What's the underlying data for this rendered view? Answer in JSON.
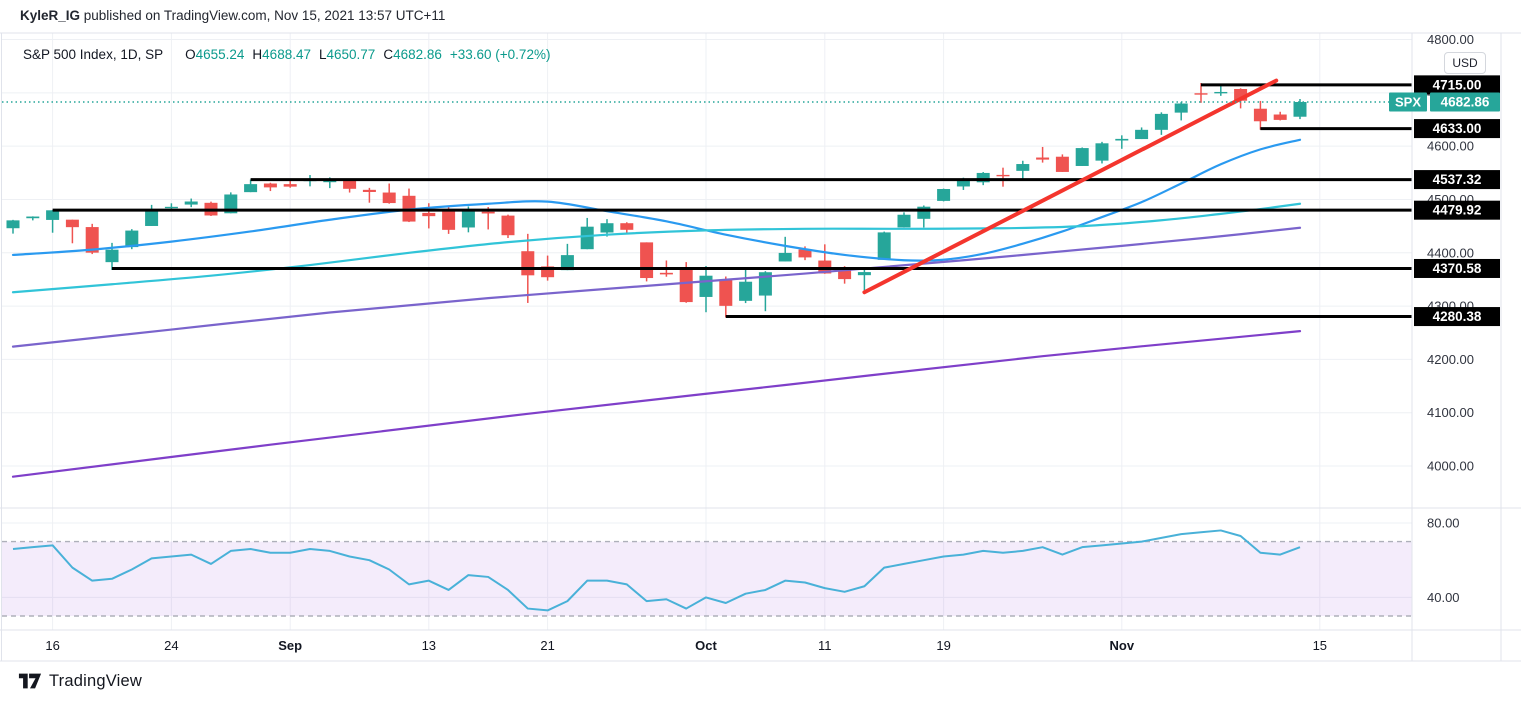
{
  "header": {
    "author": "KyleR_IG",
    "text": " published on TradingView.com, Nov 15, 2021 13:57 UTC+11"
  },
  "legend": {
    "symbol": "S&P 500 Index, 1D, SP",
    "ohlc": [
      {
        "k": "O",
        "v": "4655.24"
      },
      {
        "k": "H",
        "v": "4688.47"
      },
      {
        "k": "L",
        "v": "4650.77"
      },
      {
        "k": "C",
        "v": "4682.86"
      }
    ],
    "change": "+33.60 (+0.72%)"
  },
  "axis": {
    "currency": "USD",
    "price_ticks": [
      {
        "label": "4800.00",
        "price": 4800
      },
      {
        "label": "4700.00",
        "price": 4700
      },
      {
        "label": "4600.00",
        "price": 4600
      },
      {
        "label": "4500.00",
        "price": 4500
      },
      {
        "label": "4400.00",
        "price": 4400
      },
      {
        "label": "4300.00",
        "price": 4300
      },
      {
        "label": "4200.00",
        "price": 4200
      },
      {
        "label": "4100.00",
        "price": 4100
      },
      {
        "label": "4000.00",
        "price": 4000
      }
    ],
    "time_ticks": [
      {
        "label": "16",
        "index": 2,
        "bold": false
      },
      {
        "label": "24",
        "index": 8,
        "bold": false
      },
      {
        "label": "Sep",
        "index": 14,
        "bold": true
      },
      {
        "label": "13",
        "index": 21,
        "bold": false
      },
      {
        "label": "21",
        "index": 27,
        "bold": false
      },
      {
        "label": "Oct",
        "index": 35,
        "bold": true
      },
      {
        "label": "11",
        "index": 41,
        "bold": false
      },
      {
        "label": "19",
        "index": 47,
        "bold": false
      },
      {
        "label": "Nov",
        "index": 56,
        "bold": true
      },
      {
        "label": "15",
        "index": 66,
        "bold": false
      }
    ]
  },
  "footer": {
    "brand": "TradingView"
  },
  "colors": {
    "up": "#26a69a",
    "down": "#ef5350",
    "line_blue": "#2a9af0",
    "line_cyan": "#31c4d8",
    "line_purple_light": "#7a64cc",
    "line_purple_dark": "#7f3fc9",
    "trendline_red": "#f4352d",
    "level_black": "#000000",
    "rsi_line": "#49b1d8",
    "rsi_band_fill": "rgba(178,118,230,0.14)",
    "rsi_band_border": "#aeb0ba",
    "current_price": "#26a69a",
    "axis_text": "#30343f",
    "time_text": "#131722",
    "grid": "#eef0f4",
    "border": "#e0e3eb",
    "label_text": "#ffffff"
  },
  "chart_data": {
    "type": "candlestick",
    "title": "S&P 500 Index, 1D, SP",
    "date_range": "Aug 12 - Nov 12, 2021",
    "price_axis_range_visible": [
      3945,
      4812
    ],
    "grid": true,
    "unit": "USD",
    "candles": [
      {
        "d": "Aug 12",
        "o": 4446.08,
        "h": 4461.77,
        "l": 4435.96,
        "c": 4460.83
      },
      {
        "d": "Aug 13",
        "o": 4464.84,
        "h": 4468.37,
        "l": 4460.82,
        "c": 4468.0
      },
      {
        "d": "Aug 16",
        "o": 4461.65,
        "h": 4480.26,
        "l": 4437.66,
        "c": 4479.71
      },
      {
        "d": "Aug 17",
        "o": 4462.12,
        "h": 4462.12,
        "l": 4417.83,
        "c": 4448.08
      },
      {
        "d": "Aug 18",
        "o": 4448.24,
        "h": 4454.32,
        "l": 4397.59,
        "c": 4400.27
      },
      {
        "d": "Aug 19",
        "o": 4382.44,
        "h": 4418.61,
        "l": 4367.73,
        "c": 4405.8
      },
      {
        "d": "Aug 20",
        "o": 4410.66,
        "h": 4444.35,
        "l": 4406.8,
        "c": 4441.67
      },
      {
        "d": "Aug 23",
        "o": 4450.29,
        "h": 4489.88,
        "l": 4450.29,
        "c": 4479.53
      },
      {
        "d": "Aug 24",
        "o": 4484.4,
        "h": 4492.81,
        "l": 4482.28,
        "c": 4486.23
      },
      {
        "d": "Aug 25",
        "o": 4490.45,
        "h": 4501.71,
        "l": 4485.66,
        "c": 4496.19
      },
      {
        "d": "Aug 26",
        "o": 4493.75,
        "h": 4495.95,
        "l": 4468.99,
        "c": 4470.0
      },
      {
        "d": "Aug 27",
        "o": 4474.1,
        "h": 4513.33,
        "l": 4474.1,
        "c": 4509.37
      },
      {
        "d": "Aug 30",
        "o": 4513.76,
        "h": 4537.36,
        "l": 4513.76,
        "c": 4528.79
      },
      {
        "d": "Aug 31",
        "o": 4529.92,
        "h": 4531.39,
        "l": 4515.8,
        "c": 4522.68
      },
      {
        "d": "Sep 1",
        "o": 4528.8,
        "h": 4537.11,
        "l": 4522.02,
        "c": 4524.09
      },
      {
        "d": "Sep 2",
        "o": 4534.48,
        "h": 4545.85,
        "l": 4524.66,
        "c": 4536.95
      },
      {
        "d": "Sep 3",
        "o": 4532.42,
        "h": 4541.45,
        "l": 4521.3,
        "c": 4535.43
      },
      {
        "d": "Sep 7",
        "o": 4535.38,
        "h": 4535.38,
        "l": 4513.0,
        "c": 4520.03
      },
      {
        "d": "Sep 8",
        "o": 4518.09,
        "h": 4521.79,
        "l": 4493.95,
        "c": 4514.07
      },
      {
        "d": "Sep 9",
        "o": 4513.02,
        "h": 4529.9,
        "l": 4492.07,
        "c": 4493.28
      },
      {
        "d": "Sep 10",
        "o": 4506.92,
        "h": 4520.47,
        "l": 4457.66,
        "c": 4458.58
      },
      {
        "d": "Sep 13",
        "o": 4474.81,
        "h": 4492.99,
        "l": 4445.7,
        "c": 4468.73
      },
      {
        "d": "Sep 14",
        "o": 4479.33,
        "h": 4485.87,
        "l": 4435.46,
        "c": 4443.05
      },
      {
        "d": "Sep 15",
        "o": 4447.49,
        "h": 4486.87,
        "l": 4438.37,
        "c": 4480.7
      },
      {
        "d": "Sep 16",
        "o": 4477.14,
        "h": 4485.87,
        "l": 4443.8,
        "c": 4473.75
      },
      {
        "d": "Sep 17",
        "o": 4469.74,
        "h": 4471.52,
        "l": 4427.76,
        "c": 4432.99
      },
      {
        "d": "Sep 20",
        "o": 4402.95,
        "h": 4435.55,
        "l": 4305.91,
        "c": 4357.73
      },
      {
        "d": "Sep 21",
        "o": 4374.45,
        "h": 4394.74,
        "l": 4347.79,
        "c": 4354.19
      },
      {
        "d": "Sep 22",
        "o": 4367.43,
        "h": 4416.75,
        "l": 4367.43,
        "c": 4395.64
      },
      {
        "d": "Sep 23",
        "o": 4406.75,
        "h": 4465.4,
        "l": 4406.75,
        "c": 4448.98
      },
      {
        "d": "Sep 24",
        "o": 4438.04,
        "h": 4463.12,
        "l": 4430.39,
        "c": 4455.48
      },
      {
        "d": "Sep 27",
        "o": 4455.49,
        "h": 4457.3,
        "l": 4436.19,
        "c": 4443.11
      },
      {
        "d": "Sep 28",
        "o": 4419.54,
        "h": 4419.54,
        "l": 4346.33,
        "c": 4352.63
      },
      {
        "d": "Sep 29",
        "o": 4362.43,
        "h": 4385.58,
        "l": 4355.1,
        "c": 4359.46
      },
      {
        "d": "Sep 30",
        "o": 4370.67,
        "h": 4382.55,
        "l": 4306.24,
        "c": 4307.54
      },
      {
        "d": "Oct 1",
        "o": 4317.16,
        "h": 4375.19,
        "l": 4288.52,
        "c": 4357.04
      },
      {
        "d": "Oct 4",
        "o": 4348.84,
        "h": 4355.51,
        "l": 4278.94,
        "c": 4300.46
      },
      {
        "d": "Oct 5",
        "o": 4309.87,
        "h": 4369.23,
        "l": 4305.67,
        "c": 4345.72
      },
      {
        "d": "Oct 6",
        "o": 4319.76,
        "h": 4365.51,
        "l": 4290.45,
        "c": 4363.55
      },
      {
        "d": "Oct 7",
        "o": 4383.73,
        "h": 4429.97,
        "l": 4383.73,
        "c": 4399.76
      },
      {
        "d": "Oct 8",
        "o": 4406.08,
        "h": 4412.02,
        "l": 4386.22,
        "c": 4391.34
      },
      {
        "d": "Oct 11",
        "o": 4385.44,
        "h": 4415.88,
        "l": 4360.59,
        "c": 4361.19
      },
      {
        "d": "Oct 12",
        "o": 4368.31,
        "h": 4374.89,
        "l": 4342.09,
        "c": 4350.65
      },
      {
        "d": "Oct 13",
        "o": 4358.01,
        "h": 4372.87,
        "l": 4329.92,
        "c": 4363.8
      },
      {
        "d": "Oct 14",
        "o": 4386.75,
        "h": 4439.73,
        "l": 4386.75,
        "c": 4438.26
      },
      {
        "d": "Oct 15",
        "o": 4447.69,
        "h": 4475.82,
        "l": 4447.69,
        "c": 4471.37
      },
      {
        "d": "Oct 18",
        "o": 4463.72,
        "h": 4488.75,
        "l": 4447.47,
        "c": 4486.46
      },
      {
        "d": "Oct 19",
        "o": 4497.34,
        "h": 4520.4,
        "l": 4496.41,
        "c": 4519.63
      },
      {
        "d": "Oct 20",
        "o": 4524.42,
        "h": 4540.87,
        "l": 4517.89,
        "c": 4536.19
      },
      {
        "d": "Oct 21",
        "o": 4532.24,
        "h": 4551.44,
        "l": 4526.89,
        "c": 4549.78
      },
      {
        "d": "Oct 22",
        "o": 4546.12,
        "h": 4559.67,
        "l": 4524.0,
        "c": 4544.9
      },
      {
        "d": "Oct 25",
        "o": 4553.69,
        "h": 4572.62,
        "l": 4537.36,
        "c": 4566.48
      },
      {
        "d": "Oct 26",
        "o": 4578.69,
        "h": 4598.53,
        "l": 4569.19,
        "c": 4574.79
      },
      {
        "d": "Oct 27",
        "o": 4580.22,
        "h": 4584.57,
        "l": 4551.66,
        "c": 4551.68
      },
      {
        "d": "Oct 28",
        "o": 4562.84,
        "h": 4597.55,
        "l": 4562.84,
        "c": 4596.42
      },
      {
        "d": "Oct 29",
        "o": 4572.87,
        "h": 4608.08,
        "l": 4567.59,
        "c": 4605.38
      },
      {
        "d": "Nov 1",
        "o": 4610.62,
        "h": 4620.34,
        "l": 4595.06,
        "c": 4613.67
      },
      {
        "d": "Nov 2",
        "o": 4613.34,
        "h": 4635.15,
        "l": 4613.34,
        "c": 4630.65
      },
      {
        "d": "Nov 3",
        "o": 4630.65,
        "h": 4663.46,
        "l": 4621.19,
        "c": 4660.57
      },
      {
        "d": "Nov 4",
        "o": 4662.93,
        "h": 4683.0,
        "l": 4648.31,
        "c": 4680.06
      },
      {
        "d": "Nov 5",
        "o": 4699.26,
        "h": 4718.5,
        "l": 4681.32,
        "c": 4697.53
      },
      {
        "d": "Nov 8",
        "o": 4701.48,
        "h": 4714.92,
        "l": 4694.39,
        "c": 4701.7
      },
      {
        "d": "Nov 9",
        "o": 4707.25,
        "h": 4708.53,
        "l": 4670.87,
        "c": 4685.25
      },
      {
        "d": "Nov 10",
        "o": 4670.26,
        "h": 4684.85,
        "l": 4630.86,
        "c": 4646.71
      },
      {
        "d": "Nov 11",
        "o": 4659.39,
        "h": 4664.55,
        "l": 4648.31,
        "c": 4649.27
      },
      {
        "d": "Nov 12",
        "o": 4655.24,
        "h": 4688.47,
        "l": 4650.77,
        "c": 4682.86
      }
    ],
    "overlay_lines": [
      {
        "name": "ma-line-blue",
        "color": "#2a9af0",
        "points": [
          [
            0,
            4396
          ],
          [
            4,
            4406
          ],
          [
            8,
            4421
          ],
          [
            12,
            4440
          ],
          [
            16,
            4462
          ],
          [
            20,
            4481
          ],
          [
            24,
            4492
          ],
          [
            27,
            4496
          ],
          [
            30,
            4478
          ],
          [
            33,
            4459
          ],
          [
            36,
            4434
          ],
          [
            39,
            4413
          ],
          [
            42,
            4396
          ],
          [
            45,
            4386
          ],
          [
            47,
            4387
          ],
          [
            49,
            4398
          ],
          [
            51,
            4417
          ],
          [
            53,
            4440
          ],
          [
            55,
            4467
          ],
          [
            57,
            4495
          ],
          [
            59,
            4530
          ],
          [
            61,
            4566
          ],
          [
            63,
            4594
          ],
          [
            65,
            4612
          ]
        ]
      },
      {
        "name": "ma-line-cyan",
        "color": "#31c4d8",
        "points": [
          [
            0,
            4326
          ],
          [
            5,
            4341
          ],
          [
            10,
            4357
          ],
          [
            15,
            4377
          ],
          [
            20,
            4400
          ],
          [
            25,
            4420
          ],
          [
            30,
            4434
          ],
          [
            35,
            4442
          ],
          [
            40,
            4445
          ],
          [
            45,
            4445
          ],
          [
            50,
            4446
          ],
          [
            54,
            4450
          ],
          [
            58,
            4461
          ],
          [
            61,
            4473
          ],
          [
            63,
            4482
          ],
          [
            65,
            4492
          ]
        ]
      },
      {
        "name": "trend-line-purple-light",
        "color": "#7a64cc",
        "points": [
          [
            0,
            4224
          ],
          [
            8,
            4256
          ],
          [
            16,
            4288
          ],
          [
            24,
            4315
          ],
          [
            32,
            4338
          ],
          [
            40,
            4361
          ],
          [
            48,
            4386
          ],
          [
            56,
            4413
          ],
          [
            61,
            4431
          ],
          [
            65,
            4447
          ]
        ]
      },
      {
        "name": "trend-line-purple-dark",
        "color": "#7f3fc9",
        "points": [
          [
            0,
            3980
          ],
          [
            13,
            4040
          ],
          [
            26,
            4098
          ],
          [
            39,
            4152
          ],
          [
            52,
            4206
          ],
          [
            65,
            4253
          ]
        ]
      }
    ],
    "support_resistance_levels": [
      {
        "label": "4715.00",
        "price": 4715.0,
        "from_index": 60
      },
      {
        "label": "4633.00",
        "price": 4633.0,
        "from_index": 63
      },
      {
        "label": "4537.32",
        "price": 4537.32,
        "from_index": 12
      },
      {
        "label": "4479.92",
        "price": 4479.92,
        "from_index": 2
      },
      {
        "label": "4370.58",
        "price": 4370.58,
        "from_index": 5
      },
      {
        "label": "4280.38",
        "price": 4280.38,
        "from_index": 36
      }
    ],
    "red_trendline": {
      "from": [
        43,
        4326
      ],
      "to": [
        63.8,
        4723
      ]
    },
    "current_price": {
      "symbol": "SPX",
      "value": 4682.86,
      "label": "4682.86"
    },
    "rsi_panel": {
      "upper_band": 70,
      "lower_band": 30,
      "axis_ticks": [
        {
          "label": "80.00",
          "value": 80
        },
        {
          "label": "40.00",
          "value": 40
        }
      ],
      "values": [
        66,
        67,
        68,
        56,
        49,
        50,
        55,
        61,
        62,
        63,
        58,
        65,
        66,
        64,
        64,
        66,
        65,
        62,
        60,
        55,
        47,
        49,
        44,
        52,
        51,
        44,
        34,
        33,
        38,
        49,
        49,
        47,
        38,
        39,
        34,
        40,
        37,
        42,
        44,
        49,
        48,
        45,
        43,
        46,
        56,
        58,
        60,
        62,
        63,
        65,
        64,
        65,
        67,
        63,
        67,
        68,
        69,
        70,
        72,
        74,
        75,
        76,
        73,
        64,
        63,
        67
      ]
    }
  }
}
